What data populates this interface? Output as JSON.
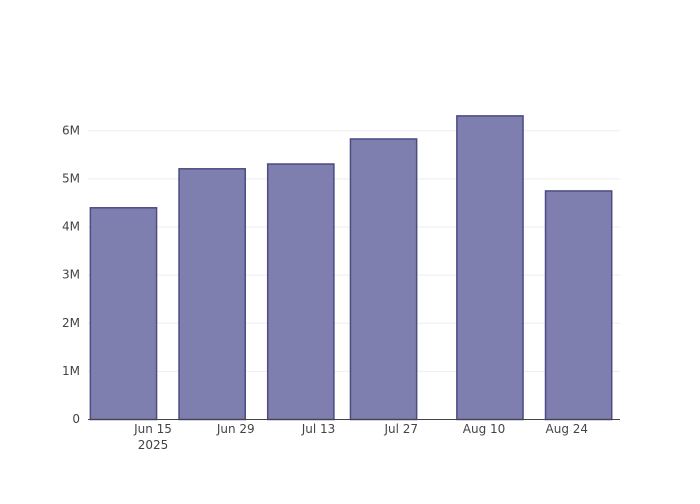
{
  "chart_data": {
    "type": "bar",
    "x": [
      "2025-06-10",
      "2025-06-25",
      "2025-07-10",
      "2025-07-24",
      "2025-08-11",
      "2025-08-26"
    ],
    "values": [
      4400000,
      5210000,
      5310000,
      5830000,
      6310000,
      4750000
    ],
    "color": "#7f7faf",
    "line_color": "#4b4b85",
    "xlim": [
      "2025-06-04",
      "2025-09-02"
    ],
    "xticks": [
      {
        "value": "2025-06-15",
        "label": "Jun 15"
      },
      {
        "value": "2025-06-29",
        "label": "Jun 29"
      },
      {
        "value": "2025-07-13",
        "label": "Jul 13"
      },
      {
        "value": "2025-07-27",
        "label": "Jul 27"
      },
      {
        "value": "2025-08-10",
        "label": "Aug 10"
      },
      {
        "value": "2025-08-24",
        "label": "Aug 24"
      }
    ],
    "x_year": "2025",
    "ylim": [
      0,
      6640000
    ],
    "yticks": [
      0,
      {
        "value": 1000000,
        "label": "1M"
      },
      {
        "value": 2000000,
        "label": "2M"
      },
      {
        "value": 3000000,
        "label": "3M"
      },
      {
        "value": 4000000,
        "label": "4M"
      },
      {
        "value": 5000000,
        "label": "5M"
      },
      {
        "value": 6000000,
        "label": "6M"
      }
    ],
    "grid": true
  }
}
